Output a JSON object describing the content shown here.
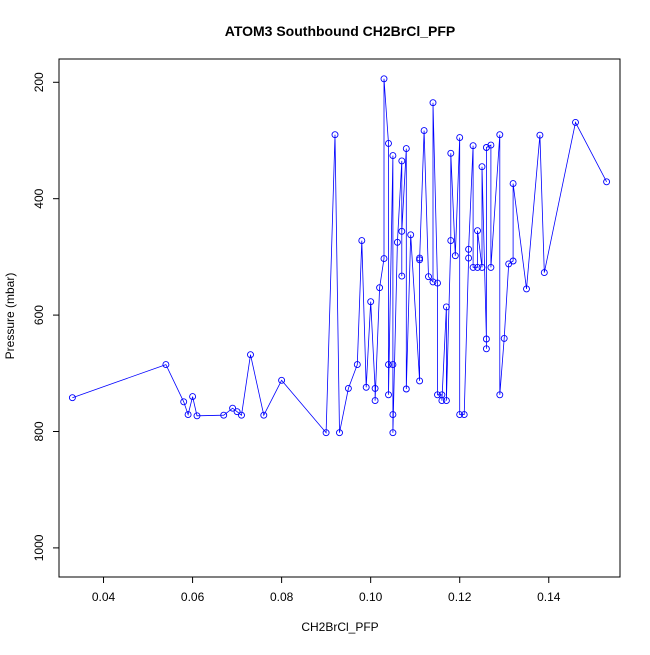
{
  "chart_data": {
    "type": "line",
    "title": "ATOM3 Southbound CH2BrCl_PFP",
    "xlabel": "CH2BrCl_PFP",
    "ylabel": "Pressure (mbar)",
    "xlim": [
      0.03,
      0.156
    ],
    "ylim": [
      1050,
      160
    ],
    "y_reversed": true,
    "x_ticks": [
      "0.04",
      "0.06",
      "0.08",
      "0.10",
      "0.12",
      "0.14"
    ],
    "y_ticks": [
      "200",
      "400",
      "600",
      "800",
      "1000"
    ],
    "grid": false,
    "colors": {
      "series": "#0000ff",
      "axis": "#000000",
      "background": "#ffffff"
    },
    "marker": "open-circle",
    "points": [
      [
        0.033,
        742
      ],
      [
        0.054,
        685
      ],
      [
        0.058,
        749
      ],
      [
        0.059,
        771
      ],
      [
        0.06,
        740
      ],
      [
        0.061,
        773
      ],
      [
        0.067,
        772
      ],
      [
        0.069,
        760
      ],
      [
        0.07,
        766
      ],
      [
        0.071,
        772
      ],
      [
        0.073,
        668
      ],
      [
        0.076,
        772
      ],
      [
        0.08,
        712
      ],
      [
        0.09,
        802
      ],
      [
        0.092,
        290
      ],
      [
        0.093,
        802
      ],
      [
        0.095,
        726
      ],
      [
        0.097,
        685
      ],
      [
        0.098,
        472
      ],
      [
        0.099,
        724
      ],
      [
        0.1,
        577
      ],
      [
        0.101,
        726
      ],
      [
        0.101,
        747
      ],
      [
        0.102,
        553
      ],
      [
        0.103,
        503
      ],
      [
        0.103,
        194
      ],
      [
        0.104,
        305
      ],
      [
        0.104,
        685
      ],
      [
        0.104,
        737
      ],
      [
        0.105,
        326
      ],
      [
        0.105,
        685
      ],
      [
        0.105,
        771
      ],
      [
        0.105,
        802
      ],
      [
        0.106,
        475
      ],
      [
        0.107,
        335
      ],
      [
        0.107,
        533
      ],
      [
        0.107,
        456
      ],
      [
        0.108,
        314
      ],
      [
        0.108,
        727
      ],
      [
        0.109,
        462
      ],
      [
        0.111,
        713
      ],
      [
        0.111,
        502
      ],
      [
        0.111,
        505
      ],
      [
        0.112,
        283
      ],
      [
        0.113,
        534
      ],
      [
        0.114,
        543
      ],
      [
        0.114,
        235
      ],
      [
        0.115,
        545
      ],
      [
        0.115,
        737
      ],
      [
        0.116,
        737
      ],
      [
        0.116,
        747
      ],
      [
        0.117,
        586
      ],
      [
        0.117,
        747
      ],
      [
        0.118,
        472
      ],
      [
        0.118,
        322
      ],
      [
        0.119,
        498
      ],
      [
        0.12,
        295
      ],
      [
        0.12,
        771
      ],
      [
        0.121,
        771
      ],
      [
        0.122,
        502
      ],
      [
        0.122,
        487
      ],
      [
        0.123,
        309
      ],
      [
        0.123,
        518
      ],
      [
        0.124,
        518
      ],
      [
        0.124,
        455
      ],
      [
        0.125,
        518
      ],
      [
        0.125,
        345
      ],
      [
        0.126,
        641
      ],
      [
        0.126,
        658
      ],
      [
        0.126,
        312
      ],
      [
        0.127,
        308
      ],
      [
        0.127,
        518
      ],
      [
        0.129,
        290
      ],
      [
        0.129,
        737
      ],
      [
        0.13,
        640
      ],
      [
        0.131,
        512
      ],
      [
        0.132,
        507
      ],
      [
        0.132,
        374
      ],
      [
        0.135,
        555
      ],
      [
        0.138,
        291
      ],
      [
        0.139,
        527
      ],
      [
        0.146,
        269
      ],
      [
        0.153,
        371
      ]
    ]
  }
}
